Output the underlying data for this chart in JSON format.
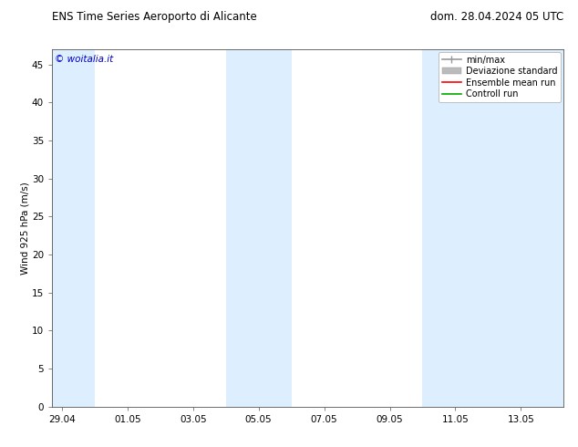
{
  "title_left": "ENS Time Series Aeroporto di Alicante",
  "title_right": "dom. 28.04.2024 05 UTC",
  "ylabel": "Wind 925 hPa (m/s)",
  "watermark": "© woitalia.it",
  "background_color": "#ffffff",
  "plot_bg_color": "#ffffff",
  "ylim": [
    0,
    47
  ],
  "yticks": [
    0,
    5,
    10,
    15,
    20,
    25,
    30,
    35,
    40,
    45
  ],
  "xtick_labels": [
    "29.04",
    "01.05",
    "03.05",
    "05.05",
    "07.05",
    "09.05",
    "11.05",
    "13.05"
  ],
  "xtick_positions": [
    0,
    2,
    4,
    6,
    8,
    10,
    12,
    14
  ],
  "xmin": -0.3,
  "xmax": 15.3,
  "shaded_bands": [
    {
      "xmin": -0.3,
      "xmax": 1.0,
      "color": "#ddeeff"
    },
    {
      "xmin": 5.0,
      "xmax": 7.0,
      "color": "#ddeeff"
    },
    {
      "xmin": 11.0,
      "xmax": 13.0,
      "color": "#ddeeff"
    },
    {
      "xmin": 13.0,
      "xmax": 15.3,
      "color": "#ddeeff"
    }
  ],
  "legend_entries": [
    {
      "label": "min/max",
      "color": "#999999",
      "lw": 1.2,
      "style": "line_with_caps"
    },
    {
      "label": "Deviazione standard",
      "color": "#bbbbbb",
      "lw": 8,
      "style": "thick_line"
    },
    {
      "label": "Ensemble mean run",
      "color": "#ff0000",
      "lw": 1.2,
      "style": "line"
    },
    {
      "label": "Controll run",
      "color": "#00aa00",
      "lw": 1.2,
      "style": "line"
    }
  ],
  "font_size": 7.5,
  "title_font_size": 8.5,
  "watermark_color": "#0000cc",
  "watermark_size": 7.5
}
